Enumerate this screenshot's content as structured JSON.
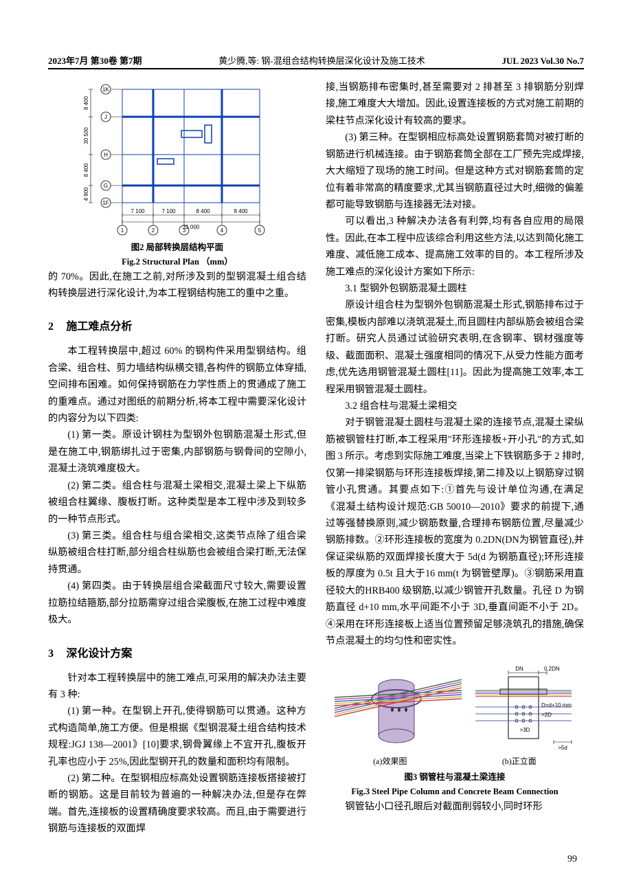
{
  "header": {
    "left": "2023年7月 第30卷 第7期",
    "center": "黄少腾,等: 钢-混组合结构转换层深化设计及施工技术",
    "right": "JUL 2023 Vol.30 No.7"
  },
  "page_number": "99",
  "left_col": {
    "fig2": {
      "cap_cn": "图2 局部转换层结构平面",
      "cap_en": "Fig.2 Structural Plan （mm）",
      "axis_labels_v": [
        "1K",
        "J",
        "H",
        "G",
        "1F"
      ],
      "axis_labels_h": [
        "1",
        "2",
        "3",
        "4",
        "5"
      ],
      "dims_v": [
        "8 400",
        "30 500",
        "8 400",
        "4 900"
      ],
      "dims_h": [
        "7 100",
        "7 100",
        "8 400",
        "8 400"
      ],
      "dim_h_total": "31 000",
      "line_color": "#0d3fb3",
      "dim_color": "#000000",
      "label_font": 10
    },
    "p_after_fig2": "的 70%。因此,在施工之前,对所涉及到的型钢混凝土组合结构转换层进行深化设计,为本工程钢结构施工的重中之重。",
    "sec2_title": "施工难点分析",
    "sec2_p1": "本工程转换层中,超过 60% 的钢构件采用型钢结构。组合梁、组合柱、剪力墙结构纵横交错,各构件的钢筋立体穿插,空间排布困难。如何保持钢筋在力学性质上的贯通成了施工的重难点。通过对图纸的前期分析,将本工程中需要深化设计的内容分为以下四类:",
    "sec2_p2": "(1) 第一类。原设计钢柱为型钢外包钢筋混凝土形式,但是在施工中,钢筋绑扎过于密集,内部钢筋与钢骨间的空隙小,混凝土浇筑难度极大。",
    "sec2_p3": "(2) 第二类。组合柱与混凝土梁相交,混凝土梁上下纵筋被组合柱翼缘、腹板打断。这种类型是本工程中涉及到较多的一种节点形式。",
    "sec2_p4": "(3) 第三类。组合柱与组合梁相交,这类节点除了组合梁纵筋被组合柱打断,部分组合柱纵筋也会被组合梁打断,无法保持贯通。",
    "sec2_p5": "(4) 第四类。由于转换层组合梁截面尺寸较大,需要设置拉筋拉结箍筋,部分拉筋需穿过组合梁腹板,在施工过程中难度极大。",
    "sec3_title": "深化设计方案",
    "sec3_p1": "针对本工程转换层中的施工难点,可采用的解决办法主要有 3 种:",
    "sec3_p2": "(1) 第一种。在型钢上开孔,使得钢筋可以贯通。这种方式构造简单,施工方便。但是根据《型钢混凝土组合结构技术规程:JGJ 138—2001》[10]要求,钢骨翼缘上不宜开孔,腹板开孔率也应小于 25%,因此型钢开孔的数量和面积均有限制。",
    "sec3_p3": "(2) 第二种。在型钢相应标高处设置钢筋连接板搭接被打断的钢筋。这是目前较为普遍的一种解决办法,但是存在弊端。首先,连接板的设置精确度要求较高。而且,由于需要进行钢筋与连接板的双面焊"
  },
  "right_col": {
    "p1": "接,当钢筋排布密集时,甚至需要对 2 排甚至 3 排钢筋分别焊接,施工难度大大增加。因此,设置连接板的方式对施工前期的梁柱节点深化设计有较高的要求。",
    "p2": "(3) 第三种。在型钢相应标高处设置钢筋套筒对被打断的钢筋进行机械连接。由于钢筋套筒全部在工厂预先完成焊接,大大缩短了现场的施工时间。但是这种方式对钢筋套筒的定位有着非常高的精度要求,尤其当钢筋直径过大时,细微的偏差都可能导致钢筋与连接器无法对接。",
    "p3": "可以看出,3 种解决办法各有利弊,均有各自应用的局限性。因此,在本工程中应该综合利用这些方法,以达到简化施工难度、减低施工成本、提高施工效率的目的。本工程所涉及施工难点的深化设计方案如下所示:",
    "sub31_title": "3.1 型钢外包钢筋混凝土圆柱",
    "sub31_p1": "原设计组合柱为型钢外包钢筋混凝土形式,钢筋排布过于密集,模板内部难以浇筑混凝土,而且圆柱内部纵筋会被组合梁打断。研究人员通过试验研究表明,在含钢率、钢材强度等级、截面面积、混凝土强度相同的情况下,从受力性能方面考虑,优先选用钢管混凝土圆柱[11]。因此为提高施工效率,本工程采用钢管混凝土圆柱。",
    "sub32_title": "3.2 组合柱与混凝土梁相交",
    "sub32_p1": "对于钢管混凝土圆柱与混凝土梁的连接节点,混凝土梁纵筋被钢管柱打断,本工程采用\"环形连接板+开小孔\"的方式,如图 3 所示。考虑到实际施工难度,当梁上下铁钢筋多于 2 排时,仅第一排梁钢筋与环形连接板焊接,第二排及以上钢筋穿过钢管小孔贯通。其要点如下:①首先与设计单位沟通,在满足《混凝土结构设计规范:GB 50010—2010》要求的前提下,通过等强替换原则,减少钢筋数量,合理排布钢筋位置,尽量减少钢筋排数。②环形连接板的宽度为 0.2DN(DN为钢管直径),并保证梁纵筋的双面焊接长度大于 5d(d 为钢筋直径);环形连接板的厚度为 0.5t 且大于16 mm(t 为钢管壁厚)。③钢筋采用直径较大的HRB400 级钢筋,以减少钢管开孔数量。孔径 D 为钢筋直径 d+10 mm,水平间距不小于 3D,垂直间距不小于 2D。④采用在环形连接板上适当位置预留足够浇筑孔的措施,确保节点混凝土的均匀性和密实性。",
    "fig3": {
      "cap_cn": "图3 钢管柱与混凝土梁连接",
      "cap_en": "Fig.3 Steel Pipe Column and Concrete Beam Connection",
      "sub_a": "(a)效果图",
      "sub_b": "(b)正立面",
      "bar_colors": [
        "#2b6f3e",
        "#c94f9b",
        "#3a62c7",
        "#d1b54a",
        "#ce3d3d"
      ],
      "pipe_fill": "#c5b4d6",
      "pipe_stroke": "#5a4680",
      "label_DN": "DN",
      "label_02DN": "0.2DN",
      "label_d10": "D=d+10 mm",
      "label_5d": ">5d",
      "label_3D": ">3D",
      "label_2D": ">2D"
    },
    "tail": "钢管钻小口径孔眼后对截面削弱较小,同时环形"
  }
}
